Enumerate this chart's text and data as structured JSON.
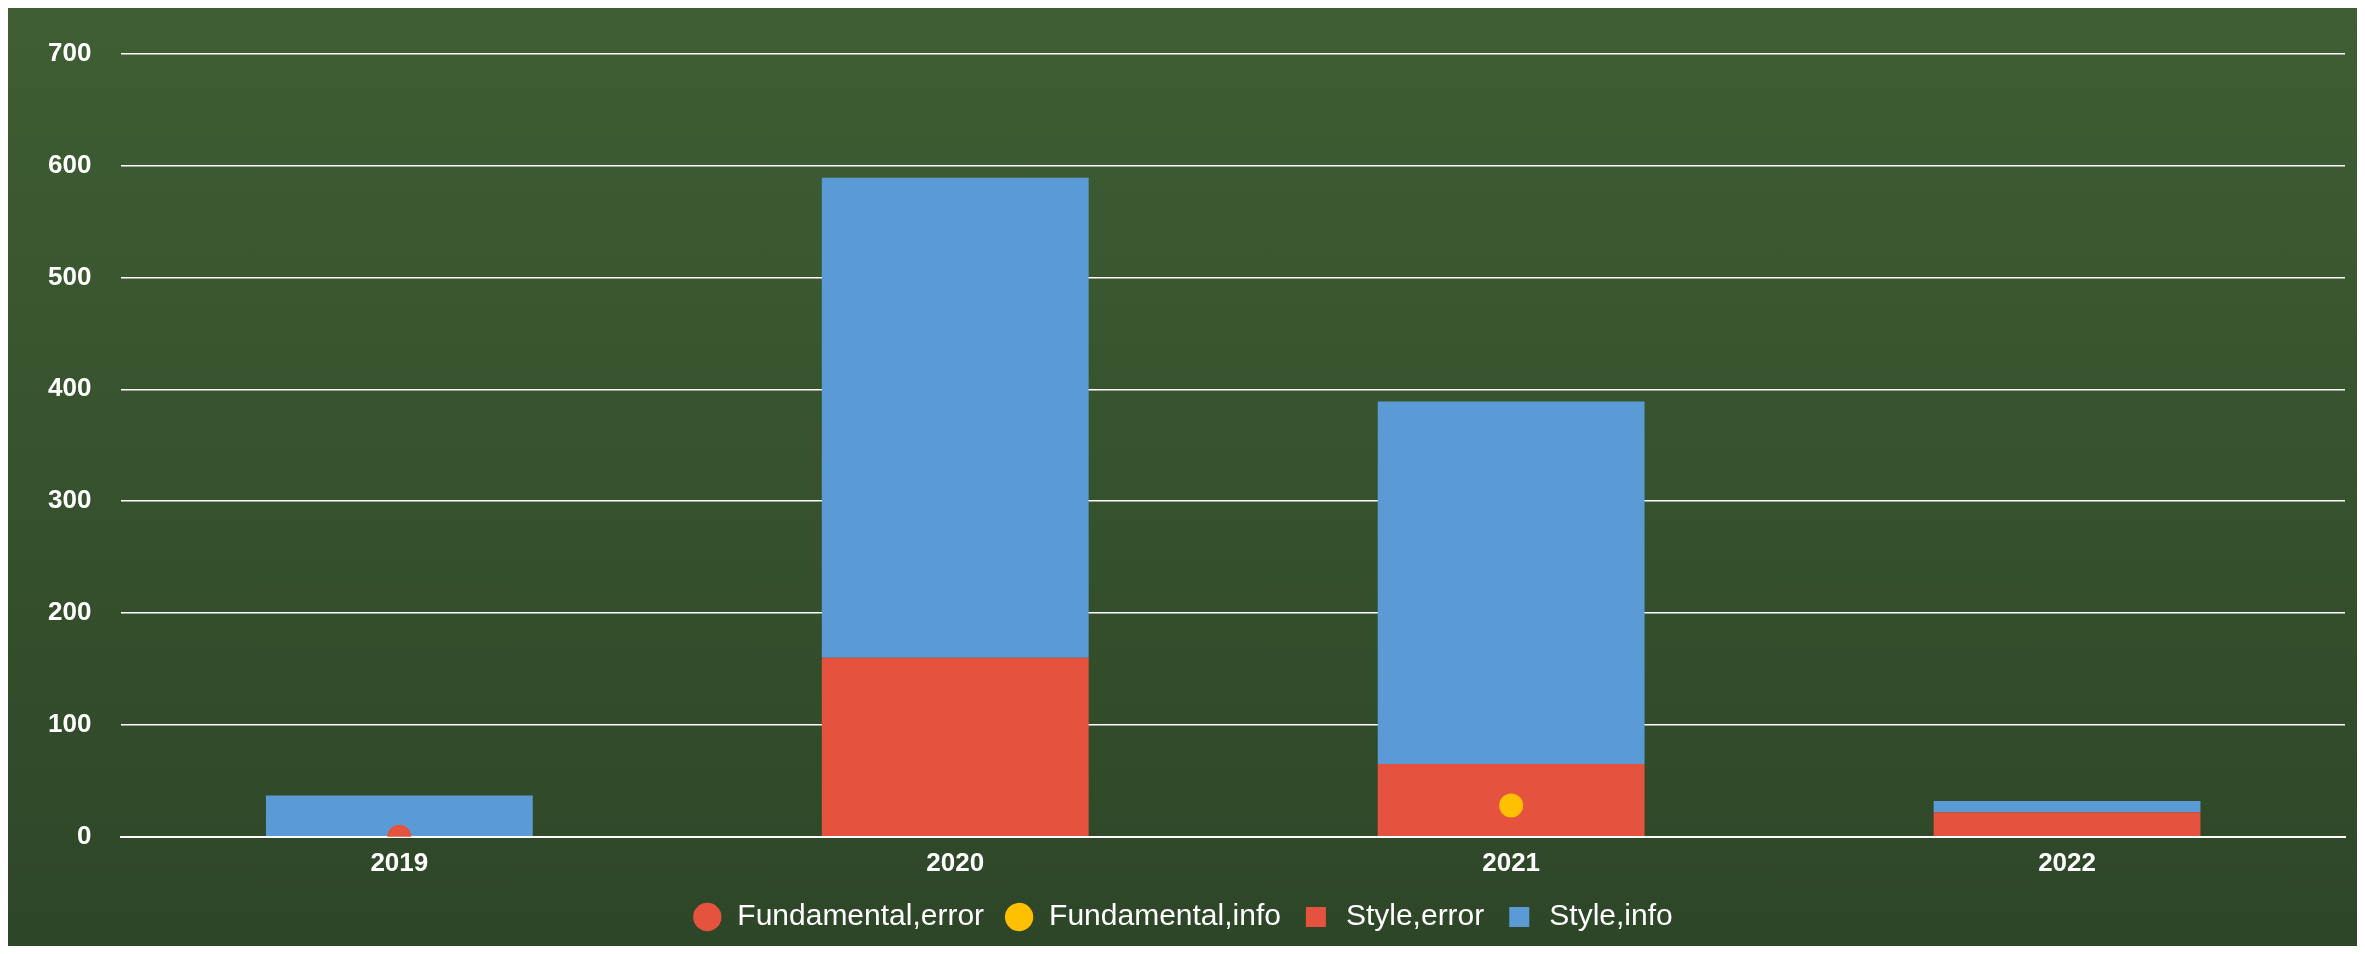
{
  "chart_data": {
    "type": "bar",
    "stacked": true,
    "categories": [
      "2019",
      "2020",
      "2021",
      "2022"
    ],
    "series": [
      {
        "name": "Style,error",
        "color": "#e5533f",
        "values": [
          0,
          160,
          65,
          22
        ]
      },
      {
        "name": "Style,info",
        "color": "#5b9bd5",
        "values": [
          37,
          429,
          324,
          10
        ]
      },
      {
        "name": "Fundamental,error",
        "type": "scatter",
        "color": "#e5533f",
        "values": [
          0,
          null,
          null,
          null
        ]
      },
      {
        "name": "Fundamental,info",
        "type": "scatter",
        "color": "#ffc000",
        "values": [
          null,
          null,
          28,
          null
        ]
      }
    ],
    "ylim": [
      0,
      700
    ],
    "yticks": [
      0,
      100,
      200,
      300,
      400,
      500,
      600,
      700
    ],
    "grid": "y",
    "legend": "bottom",
    "marker": "circle"
  }
}
